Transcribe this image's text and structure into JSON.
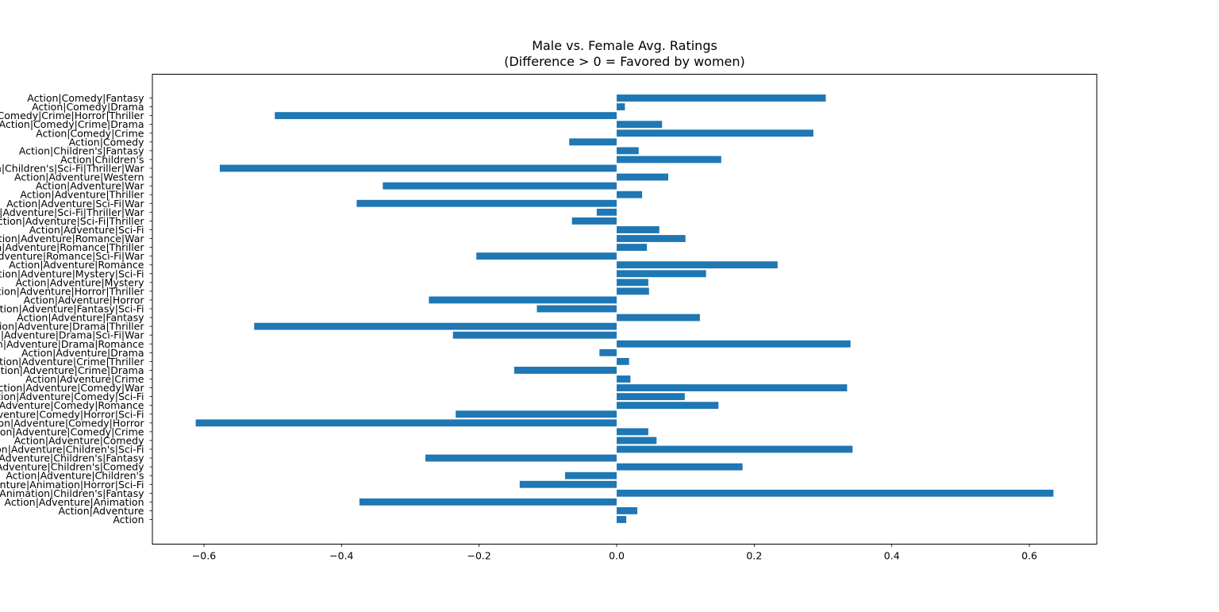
{
  "chart_data": {
    "type": "bar",
    "orientation": "horizontal",
    "title": "Male vs. Female Avg. Ratings",
    "subtitle": "(Difference > 0 = Favored by women)",
    "xlabel": "",
    "ylabel": "",
    "xlim": [
      -0.675,
      0.698
    ],
    "xticks": [
      -0.6,
      -0.4,
      -0.2,
      0.0,
      0.2,
      0.4,
      0.6
    ],
    "xtick_labels": [
      "−0.6",
      "−0.4",
      "−0.2",
      "0.0",
      "0.2",
      "0.4",
      "0.6"
    ],
    "bar_color": "#1f77b4",
    "grid": false,
    "categories": [
      "Action",
      "Action|Adventure",
      "Action|Adventure|Animation",
      "Action|Adventure|Animation|Children's|Fantasy",
      "Action|Adventure|Animation|Horror|Sci-Fi",
      "Action|Adventure|Children's",
      "Action|Adventure|Children's|Comedy",
      "Action|Adventure|Children's|Fantasy",
      "Action|Adventure|Children's|Sci-Fi",
      "Action|Adventure|Comedy",
      "Action|Adventure|Comedy|Crime",
      "Action|Adventure|Comedy|Horror",
      "Action|Adventure|Comedy|Horror|Sci-Fi",
      "Action|Adventure|Comedy|Romance",
      "Action|Adventure|Comedy|Sci-Fi",
      "Action|Adventure|Comedy|War",
      "Action|Adventure|Crime",
      "Action|Adventure|Crime|Drama",
      "Action|Adventure|Crime|Thriller",
      "Action|Adventure|Drama",
      "Action|Adventure|Drama|Romance",
      "Action|Adventure|Drama|Sci-Fi|War",
      "Action|Adventure|Drama|Thriller",
      "Action|Adventure|Fantasy",
      "Action|Adventure|Fantasy|Sci-Fi",
      "Action|Adventure|Horror",
      "Action|Adventure|Horror|Thriller",
      "Action|Adventure|Mystery",
      "Action|Adventure|Mystery|Sci-Fi",
      "Action|Adventure|Romance",
      "Action|Adventure|Romance|Sci-Fi|War",
      "Action|Adventure|Romance|Thriller",
      "Action|Adventure|Romance|War",
      "Action|Adventure|Sci-Fi",
      "Action|Adventure|Sci-Fi|Thriller",
      "Action|Adventure|Sci-Fi|Thriller|War",
      "Action|Adventure|Sci-Fi|War",
      "Action|Adventure|Thriller",
      "Action|Adventure|War",
      "Action|Adventure|Western",
      "Action|Children's|Sci-Fi|Thriller|War",
      "Action|Children's",
      "Action|Children's|Fantasy",
      "Action|Comedy",
      "Action|Comedy|Crime",
      "Action|Comedy|Crime|Drama",
      "Action|Comedy|Crime|Horror|Thriller",
      "Action|Comedy|Drama",
      "Action|Comedy|Fantasy"
    ],
    "values": [
      0.014,
      0.03,
      -0.374,
      0.635,
      -0.141,
      -0.075,
      0.183,
      -0.278,
      0.343,
      0.058,
      0.046,
      -0.612,
      -0.234,
      0.148,
      0.099,
      0.335,
      0.02,
      -0.149,
      0.018,
      -0.025,
      0.34,
      -0.238,
      -0.527,
      0.121,
      -0.116,
      -0.273,
      0.047,
      0.046,
      0.13,
      0.234,
      -0.204,
      0.044,
      0.1,
      0.062,
      -0.065,
      -0.029,
      -0.378,
      0.037,
      -0.34,
      0.075,
      -0.577,
      0.152,
      0.032,
      -0.069,
      0.286,
      0.066,
      -0.497,
      0.012,
      0.304
    ]
  }
}
